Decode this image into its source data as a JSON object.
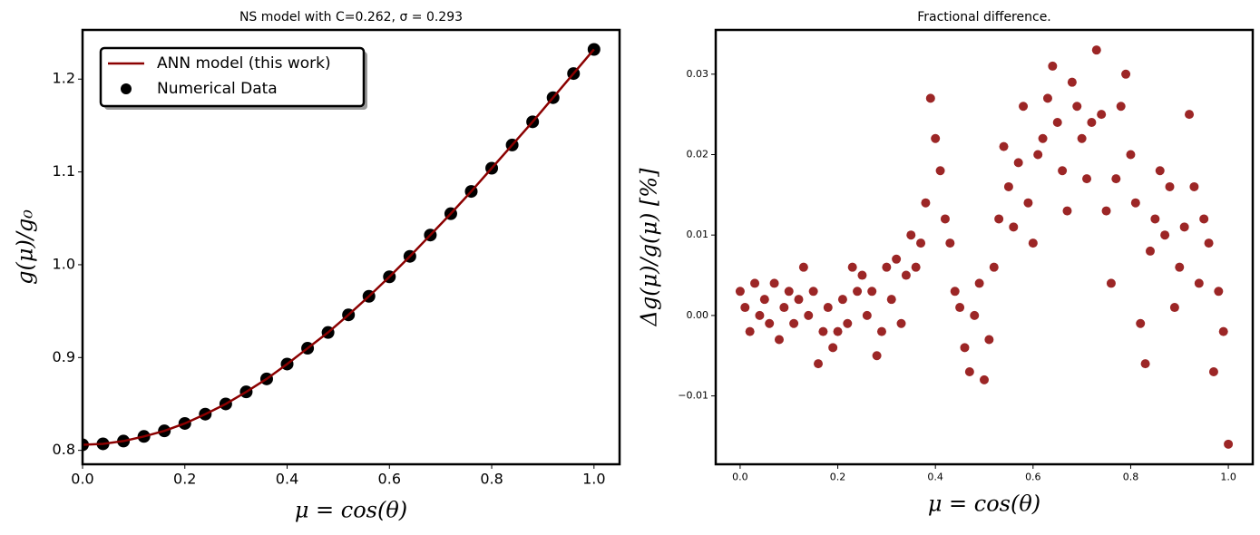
{
  "chart_data": [
    {
      "type": "line",
      "title": "NS model with C=0.262, σ = 0.293",
      "xlabel": "μ = cos(θ)",
      "ylabel": "g(μ)/g₀",
      "xlim": [
        0,
        1.05
      ],
      "ylim": [
        0.785,
        1.253
      ],
      "xticks": [
        {
          "value": 0,
          "label": "0.0"
        },
        0.2,
        0.4,
        0.6,
        0.8,
        {
          "value": 1,
          "label": "1.0"
        }
      ],
      "yticks": [
        0.8,
        0.9,
        {
          "value": 1,
          "label": "1.0"
        },
        1.1,
        1.2
      ],
      "legend": "upper left",
      "x": [
        0,
        0.04,
        0.08,
        0.12,
        0.16,
        0.2,
        0.24,
        0.28,
        0.32,
        0.36,
        0.4,
        0.44,
        0.48,
        0.52,
        0.56,
        0.6,
        0.64,
        0.68,
        0.72,
        0.76,
        0.8,
        0.84,
        0.88,
        0.92,
        0.96,
        1
      ],
      "series": [
        {
          "name": "ANN model (this work)",
          "type": "line",
          "color": "#8b0000",
          "values": [
            0.806,
            0.807,
            0.81,
            0.815,
            0.821,
            0.829,
            0.839,
            0.85,
            0.863,
            0.877,
            0.893,
            0.91,
            0.927,
            0.946,
            0.966,
            0.987,
            1.009,
            1.032,
            1.055,
            1.079,
            1.104,
            1.129,
            1.154,
            1.18,
            1.206,
            1.232
          ]
        },
        {
          "name": "Numerical Data",
          "type": "scatter",
          "color": "#000000",
          "values": [
            0.806,
            0.807,
            0.81,
            0.815,
            0.821,
            0.829,
            0.839,
            0.85,
            0.863,
            0.877,
            0.893,
            0.91,
            0.927,
            0.946,
            0.966,
            0.987,
            1.009,
            1.032,
            1.055,
            1.079,
            1.104,
            1.129,
            1.154,
            1.18,
            1.206,
            1.232
          ]
        }
      ]
    },
    {
      "type": "scatter",
      "title": "Fractional difference.",
      "xlabel": "μ = cos(θ)",
      "ylabel": "Δg(μ)/g(μ)  [%]",
      "xlim": [
        -0.05,
        1.05
      ],
      "ylim": [
        -0.0185,
        0.0355
      ],
      "xticks": [
        {
          "value": 0,
          "label": "0.0"
        },
        0.2,
        0.4,
        0.6,
        0.8,
        {
          "value": 1,
          "label": "1.0"
        }
      ],
      "yticks": [
        {
          "value": -0.01,
          "label": "−0.01"
        },
        {
          "value": 0,
          "label": "0.00"
        },
        0.01,
        0.02,
        0.03
      ],
      "x": [
        0,
        0.01,
        0.02,
        0.03,
        0.04,
        0.05,
        0.06,
        0.07,
        0.08,
        0.09,
        0.1,
        0.11,
        0.12,
        0.13,
        0.14,
        0.15,
        0.16,
        0.17,
        0.18,
        0.19,
        0.2,
        0.21,
        0.22,
        0.23,
        0.24,
        0.25,
        0.26,
        0.27,
        0.28,
        0.29,
        0.3,
        0.31,
        0.32,
        0.33,
        0.34,
        0.35,
        0.36,
        0.37,
        0.38,
        0.39,
        0.4,
        0.41,
        0.42,
        0.43,
        0.44,
        0.45,
        0.46,
        0.47,
        0.48,
        0.49,
        0.5,
        0.51,
        0.52,
        0.53,
        0.54,
        0.55,
        0.56,
        0.57,
        0.58,
        0.59,
        0.6,
        0.61,
        0.62,
        0.63,
        0.64,
        0.65,
        0.66,
        0.67,
        0.68,
        0.69,
        0.7,
        0.71,
        0.72,
        0.73,
        0.74,
        0.75,
        0.76,
        0.77,
        0.78,
        0.79,
        0.8,
        0.81,
        0.82,
        0.83,
        0.84,
        0.85,
        0.86,
        0.87,
        0.88,
        0.89,
        0.9,
        0.91,
        0.92,
        0.93,
        0.94,
        0.95,
        0.96,
        0.97,
        0.98,
        0.99,
        1
      ],
      "series": [
        {
          "name": "Fractional difference",
          "type": "scatter",
          "color": "#8b0000",
          "values": [
            0.003,
            0.001,
            -0.002,
            0.004,
            0,
            0.002,
            -0.001,
            0.004,
            -0.003,
            0.001,
            0.003,
            -0.001,
            0.002,
            0.006,
            0,
            0.003,
            -0.006,
            -0.002,
            0.001,
            -0.004,
            -0.002,
            0.002,
            -0.001,
            0.006,
            0.003,
            0.005,
            0,
            0.003,
            -0.005,
            -0.002,
            0.006,
            0.002,
            0.007,
            -0.001,
            0.005,
            0.01,
            0.006,
            0.009,
            0.014,
            0.027,
            0.022,
            0.018,
            0.012,
            0.009,
            0.003,
            0.001,
            -0.004,
            -0.007,
            0,
            0.004,
            -0.008,
            -0.003,
            0.006,
            0.012,
            0.021,
            0.016,
            0.011,
            0.019,
            0.026,
            0.014,
            0.009,
            0.02,
            0.022,
            0.027,
            0.031,
            0.024,
            0.018,
            0.013,
            0.029,
            0.026,
            0.022,
            0.017,
            0.024,
            0.033,
            0.025,
            0.013,
            0.004,
            0.017,
            0.026,
            0.03,
            0.02,
            0.014,
            -0.001,
            -0.006,
            0.008,
            0.012,
            0.018,
            0.01,
            0.016,
            0.001,
            0.006,
            0.011,
            0.025,
            0.016,
            0.004,
            0.012,
            0.009,
            -0.007,
            0.003,
            -0.002,
            -0.016
          ]
        }
      ]
    }
  ]
}
